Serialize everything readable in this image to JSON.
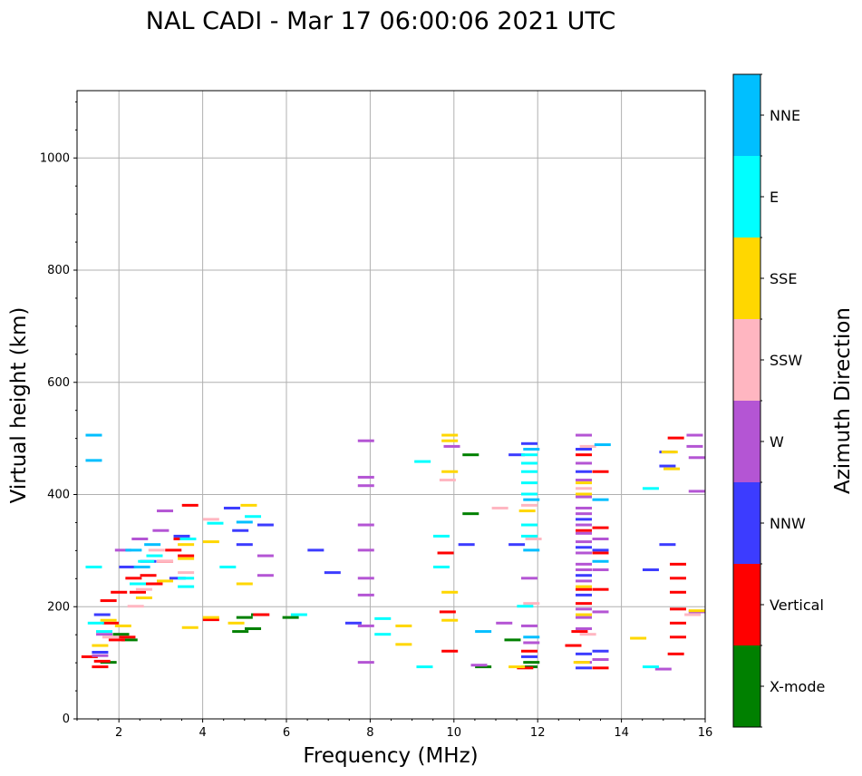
{
  "chart_data": {
    "type": "scatter",
    "title": "NAL CADI - Mar 17 06:00:06 2021 UTC",
    "xlabel": "Frequency (MHz)",
    "ylabel": "Virtual height (km)",
    "xlim": [
      1,
      16
    ],
    "ylim": [
      0,
      1120
    ],
    "xticks": [
      2,
      4,
      6,
      8,
      10,
      12,
      14,
      16
    ],
    "yticks": [
      0,
      200,
      400,
      600,
      800,
      1000
    ],
    "grid": true,
    "colorbar": {
      "title": "Azimuth Direction",
      "categories": [
        "X-mode",
        "Vertical",
        "NNW",
        "W",
        "SSW",
        "SSE",
        "E",
        "NNE"
      ],
      "colors": [
        "#008000",
        "#ff0000",
        "#3c3cff",
        "#b455d4",
        "#ffb6c1",
        "#ffd700",
        "#00ffff",
        "#00bfff"
      ]
    },
    "series": [
      {
        "name": "X-mode",
        "points": [
          [
            1.75,
            100
          ],
          [
            2.05,
            150
          ],
          [
            2.25,
            140
          ],
          [
            4.9,
            155
          ],
          [
            5.0,
            180
          ],
          [
            5.2,
            160
          ],
          [
            5.35,
            185
          ],
          [
            6.1,
            180
          ],
          [
            10.4,
            470
          ],
          [
            10.4,
            365
          ],
          [
            10.7,
            92
          ],
          [
            11.4,
            140
          ],
          [
            11.8,
            92
          ],
          [
            11.85,
            100
          ]
        ]
      },
      {
        "name": "Vertical",
        "points": [
          [
            1.3,
            110
          ],
          [
            1.55,
            92
          ],
          [
            1.6,
            102
          ],
          [
            1.75,
            210
          ],
          [
            1.8,
            170
          ],
          [
            1.95,
            140
          ],
          [
            2.0,
            225
          ],
          [
            2.2,
            145
          ],
          [
            2.35,
            250
          ],
          [
            2.45,
            225
          ],
          [
            2.55,
            240
          ],
          [
            2.7,
            255
          ],
          [
            2.85,
            240
          ],
          [
            3.1,
            280
          ],
          [
            3.3,
            300
          ],
          [
            3.5,
            320
          ],
          [
            3.6,
            290
          ],
          [
            3.7,
            380
          ],
          [
            4.2,
            176
          ],
          [
            5.4,
            185
          ],
          [
            9.8,
            295
          ],
          [
            9.85,
            190
          ],
          [
            9.9,
            120
          ],
          [
            11.7,
            90
          ],
          [
            11.8,
            120
          ],
          [
            12.85,
            130
          ],
          [
            13.0,
            155
          ],
          [
            13.1,
            205
          ],
          [
            13.1,
            230
          ],
          [
            13.1,
            335
          ],
          [
            13.1,
            470
          ],
          [
            13.5,
            90
          ],
          [
            13.5,
            230
          ],
          [
            13.5,
            295
          ],
          [
            13.5,
            340
          ],
          [
            13.5,
            440
          ],
          [
            15.3,
            500
          ],
          [
            15.3,
            115
          ],
          [
            15.35,
            145
          ],
          [
            15.35,
            170
          ],
          [
            15.35,
            195
          ],
          [
            15.35,
            225
          ],
          [
            15.35,
            250
          ],
          [
            15.35,
            275
          ]
        ]
      },
      {
        "name": "NNW",
        "points": [
          [
            1.55,
            118
          ],
          [
            1.6,
            185
          ],
          [
            2.2,
            270
          ],
          [
            2.7,
            280
          ],
          [
            3.4,
            250
          ],
          [
            3.5,
            325
          ],
          [
            4.7,
            375
          ],
          [
            4.9,
            335
          ],
          [
            5.0,
            310
          ],
          [
            5.5,
            345
          ],
          [
            6.7,
            300
          ],
          [
            7.1,
            260
          ],
          [
            7.6,
            170
          ],
          [
            10.3,
            310
          ],
          [
            11.5,
            470
          ],
          [
            11.5,
            310
          ],
          [
            11.8,
            490
          ],
          [
            11.8,
            110
          ],
          [
            13.1,
            90
          ],
          [
            13.1,
            115
          ],
          [
            13.1,
            220
          ],
          [
            13.1,
            255
          ],
          [
            13.1,
            305
          ],
          [
            13.1,
            355
          ],
          [
            13.1,
            440
          ],
          [
            13.1,
            480
          ],
          [
            13.5,
            120
          ],
          [
            13.5,
            300
          ],
          [
            14.7,
            265
          ],
          [
            15.1,
            310
          ],
          [
            15.1,
            475
          ],
          [
            15.1,
            450
          ]
        ]
      },
      {
        "name": "W",
        "points": [
          [
            1.55,
            112
          ],
          [
            1.65,
            150
          ],
          [
            2.1,
            300
          ],
          [
            2.5,
            320
          ],
          [
            3.0,
            335
          ],
          [
            3.1,
            370
          ],
          [
            5.5,
            290
          ],
          [
            5.5,
            255
          ],
          [
            7.9,
            495
          ],
          [
            7.9,
            430
          ],
          [
            7.9,
            415
          ],
          [
            7.9,
            345
          ],
          [
            7.9,
            300
          ],
          [
            7.9,
            250
          ],
          [
            7.9,
            220
          ],
          [
            7.9,
            165
          ],
          [
            7.9,
            100
          ],
          [
            9.95,
            485
          ],
          [
            10.6,
            95
          ],
          [
            11.2,
            170
          ],
          [
            11.8,
            250
          ],
          [
            11.8,
            165
          ],
          [
            11.85,
            135
          ],
          [
            13.1,
            100
          ],
          [
            13.1,
            160
          ],
          [
            13.1,
            180
          ],
          [
            13.1,
            195
          ],
          [
            13.1,
            245
          ],
          [
            13.1,
            265
          ],
          [
            13.1,
            275
          ],
          [
            13.1,
            295
          ],
          [
            13.1,
            315
          ],
          [
            13.1,
            330
          ],
          [
            13.1,
            345
          ],
          [
            13.1,
            365
          ],
          [
            13.1,
            375
          ],
          [
            13.1,
            395
          ],
          [
            13.1,
            425
          ],
          [
            13.1,
            455
          ],
          [
            13.1,
            505
          ],
          [
            13.5,
            320
          ],
          [
            13.5,
            265
          ],
          [
            13.5,
            190
          ],
          [
            13.5,
            105
          ],
          [
            15.0,
            88
          ],
          [
            15.75,
            505
          ],
          [
            15.75,
            485
          ],
          [
            15.8,
            465
          ],
          [
            15.8,
            405
          ],
          [
            15.8,
            190
          ]
        ]
      },
      {
        "name": "SSW",
        "points": [
          [
            1.8,
            145
          ],
          [
            2.4,
            200
          ],
          [
            2.6,
            230
          ],
          [
            2.9,
            300
          ],
          [
            3.1,
            280
          ],
          [
            3.6,
            260
          ],
          [
            4.2,
            355
          ],
          [
            9.85,
            425
          ],
          [
            11.1,
            375
          ],
          [
            11.8,
            380
          ],
          [
            11.85,
            205
          ],
          [
            11.9,
            320
          ],
          [
            13.1,
            410
          ],
          [
            13.2,
            150
          ],
          [
            13.2,
            485
          ],
          [
            15.7,
            185
          ]
        ]
      },
      {
        "name": "SSE",
        "points": [
          [
            1.55,
            130
          ],
          [
            1.75,
            175
          ],
          [
            2.1,
            165
          ],
          [
            2.6,
            215
          ],
          [
            3.1,
            245
          ],
          [
            3.6,
            310
          ],
          [
            3.6,
            285
          ],
          [
            4.2,
            315
          ],
          [
            3.7,
            162
          ],
          [
            4.2,
            180
          ],
          [
            4.8,
            170
          ],
          [
            5.0,
            240
          ],
          [
            5.1,
            380
          ],
          [
            8.8,
            165
          ],
          [
            8.8,
            132
          ],
          [
            9.9,
            505
          ],
          [
            9.9,
            495
          ],
          [
            9.9,
            440
          ],
          [
            9.9,
            225
          ],
          [
            9.9,
            175
          ],
          [
            11.5,
            92
          ],
          [
            11.75,
            370
          ],
          [
            13.05,
            100
          ],
          [
            13.1,
            420
          ],
          [
            13.1,
            400
          ],
          [
            13.1,
            185
          ],
          [
            13.1,
            235
          ],
          [
            14.4,
            143
          ],
          [
            15.15,
            475
          ],
          [
            15.2,
            445
          ],
          [
            15.8,
            192
          ]
        ]
      },
      {
        "name": "E",
        "points": [
          [
            1.4,
            270
          ],
          [
            1.45,
            170
          ],
          [
            1.65,
            155
          ],
          [
            2.45,
            240
          ],
          [
            2.65,
            280
          ],
          [
            2.85,
            290
          ],
          [
            3.6,
            250
          ],
          [
            3.6,
            235
          ],
          [
            3.65,
            320
          ],
          [
            4.3,
            348
          ],
          [
            4.6,
            270
          ],
          [
            5.2,
            360
          ],
          [
            6.3,
            185
          ],
          [
            8.3,
            178
          ],
          [
            8.3,
            150
          ],
          [
            9.25,
            458
          ],
          [
            9.3,
            92
          ],
          [
            9.7,
            325
          ],
          [
            9.7,
            270
          ],
          [
            11.7,
            200
          ],
          [
            11.8,
            470
          ],
          [
            11.8,
            455
          ],
          [
            11.8,
            440
          ],
          [
            11.8,
            420
          ],
          [
            11.8,
            400
          ],
          [
            11.8,
            345
          ],
          [
            11.8,
            325
          ],
          [
            14.7,
            410
          ],
          [
            14.7,
            92
          ]
        ]
      },
      {
        "name": "NNE",
        "points": [
          [
            1.4,
            505
          ],
          [
            1.4,
            460
          ],
          [
            2.35,
            300
          ],
          [
            2.55,
            270
          ],
          [
            2.8,
            310
          ],
          [
            5.0,
            350
          ],
          [
            10.7,
            155
          ],
          [
            11.85,
            480
          ],
          [
            11.85,
            390
          ],
          [
            11.85,
            300
          ],
          [
            11.85,
            145
          ],
          [
            13.55,
            488
          ],
          [
            13.5,
            390
          ],
          [
            13.5,
            280
          ]
        ]
      }
    ]
  }
}
